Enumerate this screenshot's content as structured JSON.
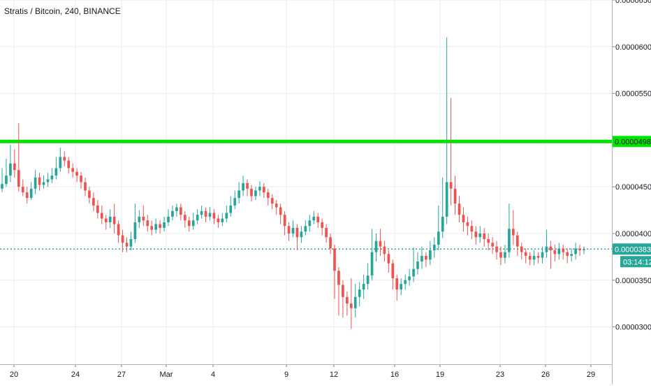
{
  "header": {
    "title": "Stratis / Bitcoin, 240, BINANCE"
  },
  "chart_data": {
    "type": "candlestick",
    "symbol": "Stratis / Bitcoin",
    "interval": "240",
    "exchange": "BINANCE",
    "y_axis": {
      "ticks": [
        "0.00003000",
        "0.00003500",
        "0.00004000",
        "0.00004500",
        "0.00005000",
        "0.00005500",
        "0.00006000",
        "0.00006500"
      ],
      "range": [
        2.6e-05,
        6.5e-05
      ]
    },
    "x_axis": {
      "ticks": [
        "20",
        "24",
        "27",
        "Mar",
        "4",
        "9",
        "12",
        "16",
        "19",
        "23",
        "26",
        "29"
      ]
    },
    "horizontal_line": {
      "value": 4.985e-05,
      "label": "0.00004985",
      "color": "#00e600"
    },
    "current_price": {
      "value": 3.833e-05,
      "label": "0.00003833",
      "countdown": "03:14:12",
      "color": "#26a69a"
    },
    "colors": {
      "up": "#26a69a",
      "down": "#ef5350",
      "grid": "#e8ebef",
      "axis_text": "#131722"
    },
    "grid": true,
    "candles": [
      [
        4.48e-05,
        4.53e-05,
        4.7e-05,
        4.44e-05
      ],
      [
        4.53e-05,
        4.62e-05,
        4.8e-05,
        4.5e-05
      ],
      [
        4.62e-05,
        4.75e-05,
        4.95e-05,
        4.55e-05
      ],
      [
        4.75e-05,
        4.68e-05,
        4.9e-05,
        4.6e-05
      ],
      [
        4.68e-05,
        4.5e-05,
        5.18e-05,
        4.45e-05
      ],
      [
        4.5e-05,
        4.44e-05,
        4.58e-05,
        4.4e-05
      ],
      [
        4.44e-05,
        4.38e-05,
        4.5e-05,
        4.32e-05
      ],
      [
        4.38e-05,
        4.48e-05,
        4.55e-05,
        4.36e-05
      ],
      [
        4.48e-05,
        4.6e-05,
        4.68e-05,
        4.42e-05
      ],
      [
        4.6e-05,
        4.52e-05,
        4.65e-05,
        4.46e-05
      ],
      [
        4.52e-05,
        4.55e-05,
        4.62e-05,
        4.48e-05
      ],
      [
        4.55e-05,
        4.58e-05,
        4.65e-05,
        4.5e-05
      ],
      [
        4.58e-05,
        4.62e-05,
        4.7e-05,
        4.54e-05
      ],
      [
        4.62e-05,
        4.7e-05,
        4.82e-05,
        4.58e-05
      ],
      [
        4.7e-05,
        4.82e-05,
        4.92e-05,
        4.66e-05
      ],
      [
        4.82e-05,
        4.78e-05,
        4.88e-05,
        4.72e-05
      ],
      [
        4.78e-05,
        4.7e-05,
        4.82e-05,
        4.64e-05
      ],
      [
        4.7e-05,
        4.66e-05,
        4.75e-05,
        4.6e-05
      ],
      [
        4.66e-05,
        4.62e-05,
        4.7e-05,
        4.55e-05
      ],
      [
        4.62e-05,
        4.55e-05,
        4.66e-05,
        4.48e-05
      ],
      [
        4.55e-05,
        4.46e-05,
        4.6e-05,
        4.4e-05
      ],
      [
        4.46e-05,
        4.38e-05,
        4.5e-05,
        4.32e-05
      ],
      [
        4.38e-05,
        4.3e-05,
        4.44e-05,
        4.24e-05
      ],
      [
        4.3e-05,
        4.22e-05,
        4.36e-05,
        4.16e-05
      ],
      [
        4.22e-05,
        4.16e-05,
        4.3e-05,
        4.1e-05
      ],
      [
        4.16e-05,
        4.12e-05,
        4.2e-05,
        4.04e-05
      ],
      [
        4.12e-05,
        4.18e-05,
        4.26e-05,
        4.06e-05
      ],
      [
        4.18e-05,
        4.1e-05,
        4.32e-05,
        4e-05
      ],
      [
        4.1e-05,
        3.98e-05,
        4.14e-05,
        3.9e-05
      ],
      [
        3.98e-05,
        3.9e-05,
        4.04e-05,
        3.8e-05
      ],
      [
        3.9e-05,
        3.86e-05,
        3.96e-05,
        3.8e-05
      ],
      [
        3.86e-05,
        3.94e-05,
        4.02e-05,
        3.82e-05
      ],
      [
        3.94e-05,
        4.12e-05,
        4.32e-05,
        3.9e-05
      ],
      [
        4.12e-05,
        4.18e-05,
        4.25e-05,
        4.06e-05
      ],
      [
        4.18e-05,
        4.14e-05,
        4.3e-05,
        4.08e-05
      ],
      [
        4.14e-05,
        4.08e-05,
        4.2e-05,
        4.02e-05
      ],
      [
        4.08e-05,
        4.04e-05,
        4.14e-05,
        3.98e-05
      ],
      [
        4.04e-05,
        4.1e-05,
        4.16e-05,
        4e-05
      ],
      [
        4.1e-05,
        4.06e-05,
        4.14e-05,
        4e-05
      ],
      [
        4.06e-05,
        4.12e-05,
        4.18e-05,
        4.02e-05
      ],
      [
        4.12e-05,
        4.18e-05,
        4.26e-05,
        4.08e-05
      ],
      [
        4.18e-05,
        4.24e-05,
        4.3e-05,
        4.14e-05
      ],
      [
        4.24e-05,
        4.28e-05,
        4.32e-05,
        4.18e-05
      ],
      [
        4.28e-05,
        4.2e-05,
        4.32e-05,
        4.14e-05
      ],
      [
        4.2e-05,
        4.14e-05,
        4.24e-05,
        4.06e-05
      ],
      [
        4.14e-05,
        4.08e-05,
        4.18e-05,
        4.02e-05
      ],
      [
        4.08e-05,
        4.14e-05,
        4.22e-05,
        4.04e-05
      ],
      [
        4.14e-05,
        4.2e-05,
        4.26e-05,
        4.1e-05
      ],
      [
        4.2e-05,
        4.24e-05,
        4.3e-05,
        4.16e-05
      ],
      [
        4.24e-05,
        4.18e-05,
        4.28e-05,
        4.12e-05
      ],
      [
        4.18e-05,
        4.22e-05,
        4.28e-05,
        4.14e-05
      ],
      [
        4.22e-05,
        4.16e-05,
        4.26e-05,
        4.1e-05
      ],
      [
        4.16e-05,
        4.12e-05,
        4.2e-05,
        4.06e-05
      ],
      [
        4.12e-05,
        4.16e-05,
        4.22e-05,
        4.08e-05
      ],
      [
        4.16e-05,
        4.22e-05,
        4.3e-05,
        4.12e-05
      ],
      [
        4.22e-05,
        4.3e-05,
        4.4e-05,
        4.18e-05
      ],
      [
        4.3e-05,
        4.38e-05,
        4.46e-05,
        4.26e-05
      ],
      [
        4.38e-05,
        4.46e-05,
        4.55e-05,
        4.32e-05
      ],
      [
        4.46e-05,
        4.54e-05,
        4.62e-05,
        4.4e-05
      ],
      [
        4.54e-05,
        4.48e-05,
        4.58e-05,
        4.4e-05
      ],
      [
        4.48e-05,
        4.4e-05,
        4.52e-05,
        4.34e-05
      ],
      [
        4.4e-05,
        4.46e-05,
        4.5e-05,
        4.36e-05
      ],
      [
        4.46e-05,
        4.5e-05,
        4.56e-05,
        4.4e-05
      ],
      [
        4.5e-05,
        4.44e-05,
        4.54e-05,
        4.38e-05
      ],
      [
        4.44e-05,
        4.38e-05,
        4.48e-05,
        4.3e-05
      ],
      [
        4.38e-05,
        4.32e-05,
        4.42e-05,
        4.26e-05
      ],
      [
        4.32e-05,
        4.28e-05,
        4.36e-05,
        4.2e-05
      ],
      [
        4.28e-05,
        4.2e-05,
        4.32e-05,
        4.1e-05
      ],
      [
        4.2e-05,
        4.08e-05,
        4.24e-05,
        3.98e-05
      ],
      [
        4.08e-05,
        4e-05,
        4.12e-05,
        3.92e-05
      ],
      [
        4e-05,
        4.06e-05,
        4.14e-05,
        3.96e-05
      ],
      [
        4.06e-05,
        3.96e-05,
        4.1e-05,
        3.82e-05
      ],
      [
        3.96e-05,
        4.02e-05,
        4.08e-05,
        3.9e-05
      ],
      [
        4.02e-05,
        4.08e-05,
        4.14e-05,
        3.98e-05
      ],
      [
        4.08e-05,
        4.14e-05,
        4.2e-05,
        4.02e-05
      ],
      [
        4.14e-05,
        4.18e-05,
        4.24e-05,
        4.1e-05
      ],
      [
        4.18e-05,
        4.12e-05,
        4.22e-05,
        4.06e-05
      ],
      [
        4.12e-05,
        4.06e-05,
        4.16e-05,
        3.98e-05
      ],
      [
        4.06e-05,
        3.96e-05,
        4.1e-05,
        3.9e-05
      ],
      [
        3.96e-05,
        3.84e-05,
        4e-05,
        3.78e-05
      ],
      [
        3.84e-05,
        3.6e-05,
        3.88e-05,
        3.3e-05
      ],
      [
        3.6e-05,
        3.45e-05,
        3.64e-05,
        3.12e-05
      ],
      [
        3.45e-05,
        3.32e-05,
        3.5e-05,
        3.1e-05
      ],
      [
        3.32e-05,
        3.25e-05,
        3.38e-05,
        3.12e-05
      ],
      [
        3.25e-05,
        3.2e-05,
        3.52e-05,
        2.98e-05
      ],
      [
        3.2e-05,
        3.32e-05,
        3.46e-05,
        3.1e-05
      ],
      [
        3.32e-05,
        3.4e-05,
        3.48e-05,
        3.22e-05
      ],
      [
        3.4e-05,
        3.46e-05,
        3.56e-05,
        3.3e-05
      ],
      [
        3.46e-05,
        3.55e-05,
        3.68e-05,
        3.4e-05
      ],
      [
        3.55e-05,
        3.8e-05,
        4.05e-05,
        3.5e-05
      ],
      [
        3.8e-05,
        3.92e-05,
        4e-05,
        3.7e-05
      ],
      [
        3.92e-05,
        3.86e-05,
        4.05e-05,
        3.76e-05
      ],
      [
        3.86e-05,
        3.78e-05,
        3.92e-05,
        3.7e-05
      ],
      [
        3.78e-05,
        3.68e-05,
        3.82e-05,
        3.58e-05
      ],
      [
        3.68e-05,
        3.52e-05,
        3.72e-05,
        3.4e-05
      ],
      [
        3.52e-05,
        3.4e-05,
        3.56e-05,
        3.28e-05
      ],
      [
        3.4e-05,
        3.46e-05,
        3.52e-05,
        3.34e-05
      ],
      [
        3.46e-05,
        3.5e-05,
        3.56e-05,
        3.4e-05
      ],
      [
        3.5e-05,
        3.54e-05,
        3.62e-05,
        3.44e-05
      ],
      [
        3.54e-05,
        3.62e-05,
        3.85e-05,
        3.48e-05
      ],
      [
        3.62e-05,
        3.7e-05,
        3.8e-05,
        3.56e-05
      ],
      [
        3.7e-05,
        3.76e-05,
        3.86e-05,
        3.62e-05
      ],
      [
        3.76e-05,
        3.72e-05,
        3.8e-05,
        3.64e-05
      ],
      [
        3.72e-05,
        3.82e-05,
        3.92e-05,
        3.66e-05
      ],
      [
        3.82e-05,
        3.88e-05,
        3.96e-05,
        3.74e-05
      ],
      [
        3.88e-05,
        4.02e-05,
        4.3e-05,
        3.82e-05
      ],
      [
        4.02e-05,
        4.18e-05,
        4.6e-05,
        3.95e-05
      ],
      [
        4.18e-05,
        4.55e-05,
        6.1e-05,
        4.1e-05
      ],
      [
        4.55e-05,
        4.48e-05,
        5.45e-05,
        4.3e-05
      ],
      [
        4.48e-05,
        4.32e-05,
        4.62e-05,
        4.2e-05
      ],
      [
        4.32e-05,
        4.2e-05,
        4.4e-05,
        4.12e-05
      ],
      [
        4.2e-05,
        4.12e-05,
        4.28e-05,
        4.02e-05
      ],
      [
        4.12e-05,
        4.08e-05,
        4.18e-05,
        3.98e-05
      ],
      [
        4.08e-05,
        4.02e-05,
        4.14e-05,
        3.94e-05
      ],
      [
        4.02e-05,
        3.96e-05,
        4.08e-05,
        3.88e-05
      ],
      [
        3.96e-05,
        4e-05,
        4.08e-05,
        3.9e-05
      ],
      [
        4e-05,
        3.94e-05,
        4.06e-05,
        3.86e-05
      ],
      [
        3.94e-05,
        3.9e-05,
        4e-05,
        3.82e-05
      ],
      [
        3.9e-05,
        3.86e-05,
        3.96e-05,
        3.78e-05
      ],
      [
        3.86e-05,
        3.8e-05,
        3.92e-05,
        3.72e-05
      ],
      [
        3.8e-05,
        3.74e-05,
        3.86e-05,
        3.66e-05
      ],
      [
        3.74e-05,
        3.8e-05,
        3.88e-05,
        3.68e-05
      ],
      [
        3.8e-05,
        4.05e-05,
        4.32e-05,
        3.74e-05
      ],
      [
        4.05e-05,
        3.98e-05,
        4.25e-05,
        3.88e-05
      ],
      [
        3.98e-05,
        3.86e-05,
        4.02e-05,
        3.76e-05
      ],
      [
        3.86e-05,
        3.8e-05,
        3.9e-05,
        3.72e-05
      ],
      [
        3.8e-05,
        3.76e-05,
        3.84e-05,
        3.68e-05
      ],
      [
        3.76e-05,
        3.72e-05,
        3.8e-05,
        3.66e-05
      ],
      [
        3.72e-05,
        3.76e-05,
        3.82e-05,
        3.66e-05
      ],
      [
        3.76e-05,
        3.74e-05,
        3.8e-05,
        3.68e-05
      ],
      [
        3.74e-05,
        3.8e-05,
        3.86e-05,
        3.68e-05
      ],
      [
        3.8e-05,
        3.86e-05,
        4.04e-05,
        3.74e-05
      ],
      [
        3.86e-05,
        3.82e-05,
        3.92e-05,
        3.62e-05
      ],
      [
        3.82e-05,
        3.78e-05,
        3.88e-05,
        3.7e-05
      ],
      [
        3.78e-05,
        3.84e-05,
        3.9e-05,
        3.72e-05
      ],
      [
        3.84e-05,
        3.8e-05,
        3.88e-05,
        3.72e-05
      ],
      [
        3.8e-05,
        3.76e-05,
        3.84e-05,
        3.68e-05
      ],
      [
        3.76e-05,
        3.78e-05,
        3.84e-05,
        3.7e-05
      ],
      [
        3.78e-05,
        3.84e-05,
        3.9e-05,
        3.72e-05
      ],
      [
        3.84e-05,
        3.82e-05,
        3.88e-05,
        3.76e-05
      ],
      [
        3.82e-05,
        3.83e-05,
        3.86e-05,
        3.78e-05
      ]
    ]
  }
}
